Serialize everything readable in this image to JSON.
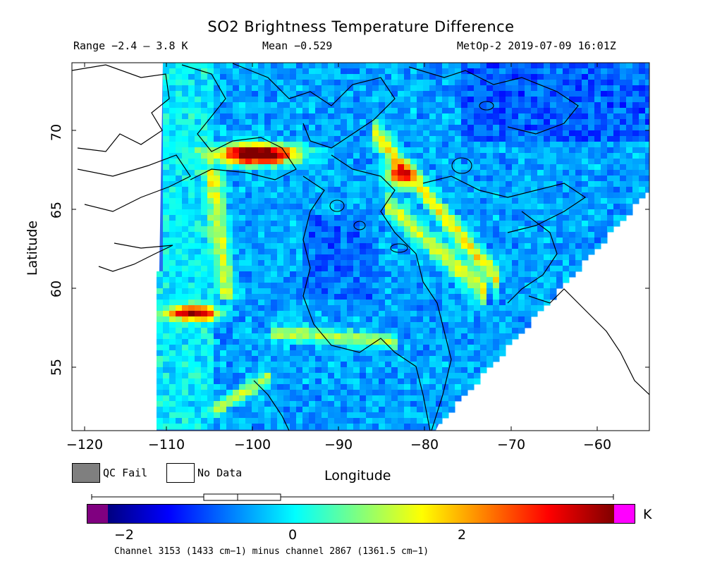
{
  "header": {
    "title": "SO2 Brightness Temperature Difference",
    "range": "Range −2.4 – 3.8 K",
    "mean": "Mean −0.529",
    "satellite": "MetOp-2 2019-07-09 16:01Z"
  },
  "axes": {
    "y_label": "Latitude",
    "x_label": "Longitude",
    "y_ticks": [
      "70",
      "65",
      "60",
      "55"
    ],
    "x_ticks": [
      "−120",
      "−110",
      "−100",
      "−90",
      "−80",
      "−70",
      "−60"
    ],
    "lon_range": [
      -121.5,
      -54.5
    ],
    "lat_range": [
      51,
      74.5
    ]
  },
  "legend": {
    "qc_fail": "QC Fail",
    "no_data": "No Data",
    "qc_fail_color": "#7f7f7f",
    "no_data_color": "#ffffff"
  },
  "colorbar": {
    "unit": "K",
    "ticks": [
      "−2",
      "0",
      "2"
    ],
    "range": [
      -2.5,
      3.8
    ],
    "under_color": "#800080",
    "over_color": "#ff00ff",
    "boxplot": {
      "min": -2.4,
      "q1": -1.0,
      "median": -0.6,
      "q3": -0.1,
      "max": 3.8
    }
  },
  "footnote": "Channel 3153 (1433 cm−1) minus channel 2867 (1361.5 cm−1)"
}
